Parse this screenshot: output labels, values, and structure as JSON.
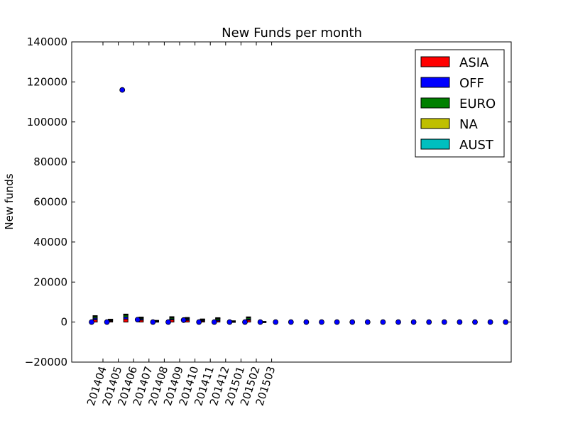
{
  "chart_data": {
    "type": "bar",
    "title": "New Funds per month",
    "xlabel": "",
    "ylabel": "New funds",
    "ylim": [
      -20000,
      140000
    ],
    "yticks": [
      "−20000",
      "0",
      "20000",
      "40000",
      "60000",
      "80000",
      "100000",
      "120000",
      "140000"
    ],
    "categories": [
      "201404",
      "201405",
      "201406",
      "201407",
      "201408",
      "201409",
      "201410",
      "201411",
      "201412",
      "201501",
      "201502",
      "201503"
    ],
    "legend_position": "top-right",
    "grid": false,
    "series": [
      {
        "name": "ASIA",
        "color": "#ff0000",
        "values": [
          1200,
          500,
          1500,
          1000,
          300,
          1100,
          900,
          500,
          600,
          200,
          1000,
          100
        ]
      },
      {
        "name": "OFF",
        "color": "#0000ff",
        "values": [
          800,
          300,
          1000,
          600,
          200,
          500,
          500,
          400,
          500,
          100,
          500,
          50
        ]
      },
      {
        "name": "EURO",
        "color": "#008000",
        "values": [
          800,
          400,
          1000,
          500,
          200,
          700,
          600,
          400,
          700,
          200,
          800,
          100
        ]
      },
      {
        "name": "NA",
        "color": "#bfbf00",
        "values": [
          300,
          200,
          400,
          300,
          100,
          300,
          200,
          200,
          300,
          100,
          200,
          50
        ]
      },
      {
        "name": "AUST",
        "color": "#00bfbf",
        "values": [
          100,
          50,
          100,
          100,
          50,
          100,
          100,
          50,
          100,
          50,
          100,
          20
        ]
      }
    ],
    "scatter": {
      "name": "",
      "color": "#0000ff",
      "x": [
        0,
        1,
        2,
        3,
        4,
        5,
        6,
        7,
        8,
        9,
        10,
        11,
        12,
        13,
        14,
        15,
        16,
        17,
        18,
        19,
        20,
        21,
        22,
        23,
        24,
        25,
        26,
        27
      ],
      "y": [
        0,
        0,
        116000,
        1200,
        0,
        0,
        1000,
        0,
        0,
        0,
        0,
        0,
        0,
        0,
        0,
        0,
        0,
        0,
        0,
        0,
        0,
        0,
        0,
        0,
        0,
        0,
        0,
        0
      ]
    }
  }
}
